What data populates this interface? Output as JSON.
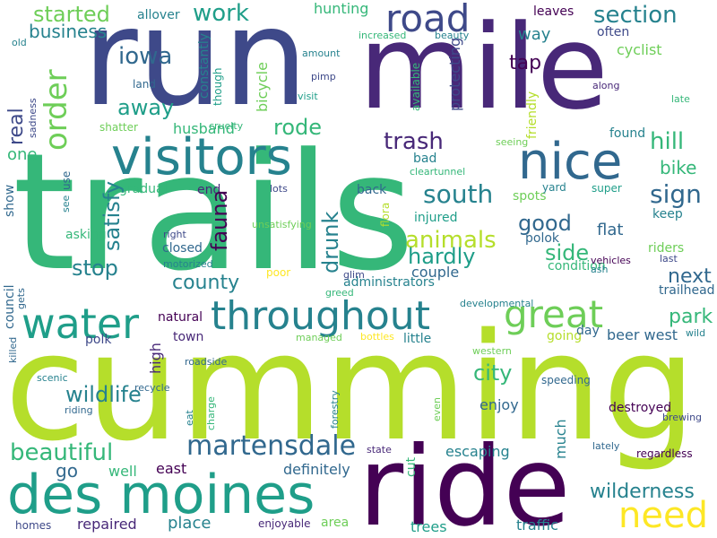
{
  "palette": {
    "dark_purple": "#440154",
    "purple": "#482878",
    "indigo": "#3e4989",
    "blue": "#31688e",
    "teal_blue": "#26828e",
    "teal": "#1f9e89",
    "green_teal": "#35b779",
    "green": "#6ece58",
    "lime": "#b5de2b",
    "yellow": "#fde725"
  },
  "words": [
    "trails",
    "cumming",
    "run",
    "mile",
    "ride",
    "des moines",
    "visitors",
    "nice",
    "throughout",
    "water",
    "great",
    "road",
    "martensdale",
    "beautiful",
    "need",
    "work",
    "section",
    "started",
    "trash",
    "animals",
    "south",
    "sign",
    "hill",
    "good",
    "iowa",
    "tap",
    "stop",
    "side",
    "away",
    "rode",
    "hardly",
    "wildlife",
    "county",
    "park",
    "wilderness",
    "next",
    "city",
    "go",
    "bike",
    "business",
    "one",
    "way",
    "flat",
    "well",
    "east",
    "definitely",
    "place",
    "repaired",
    "trees",
    "traffic",
    "enjoy",
    "escaping",
    "destroyed",
    "beer west",
    "trailhead",
    "town",
    "polk",
    "natural",
    "closed",
    "administrators",
    "couple",
    "injured",
    "spots",
    "condition",
    "riders",
    "last",
    "keep",
    "super",
    "yard",
    "seeing",
    "found",
    "along",
    "late",
    "often",
    "cyclist",
    "leaves",
    "hunting",
    "allover",
    "increased",
    "beauty",
    "amount",
    "pimp",
    "visit",
    "land",
    "shatter",
    "husband",
    "cruelty",
    "gradual",
    "end",
    "lots",
    "back",
    "bad",
    "cleartunnel",
    "right",
    "motorized",
    "unsatisfying",
    "asking",
    "poor",
    "glim",
    "greed",
    "developmental",
    "bottles",
    "managed",
    "little",
    "going",
    "day",
    "wild",
    "western",
    "roadside",
    "recycle",
    "scenic",
    "riding",
    "speeding",
    "brewing",
    "lately",
    "regardless",
    "state",
    "area",
    "enjoyable",
    "homes",
    "vehicles",
    "ash",
    "polok",
    "old",
    "order",
    "real",
    "sadness",
    "see",
    "use",
    "show",
    "satisfy",
    "fauna",
    "drunk",
    "bicycle",
    "though",
    "constantly",
    "protecting",
    "available",
    "friendly",
    "flora",
    "council",
    "gets",
    "killed",
    "high",
    "eat",
    "charge",
    "forestry",
    "cut",
    "even",
    "much"
  ]
}
